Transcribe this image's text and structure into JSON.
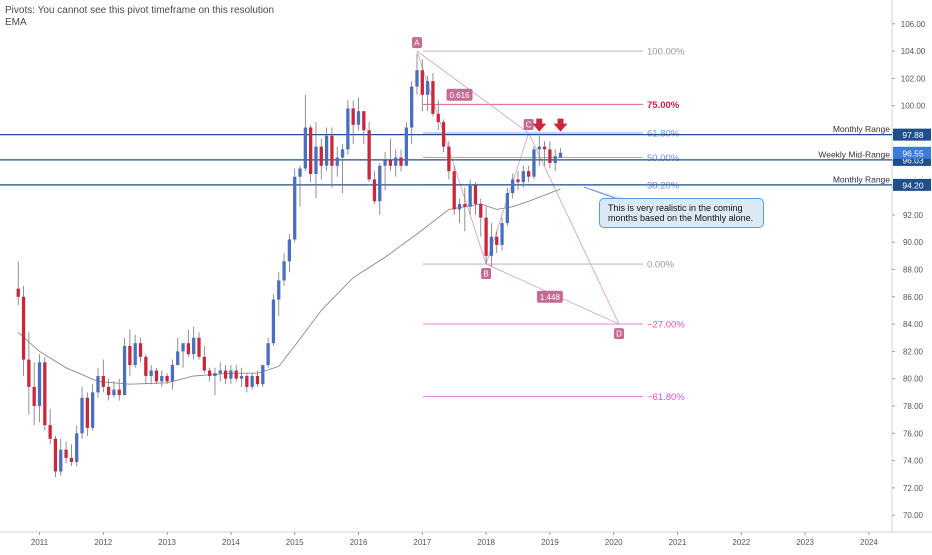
{
  "header": {
    "pivots_msg": "Pivots: You cannot see this pivot timeframe on this resolution",
    "ema_label": "EMA"
  },
  "annotation": {
    "text": "This is very realistic in the coming months based on the Monthly alone."
  },
  "colors": {
    "up": "#4a6fbf",
    "down": "#c8283c",
    "ema": "#8a8a8a",
    "range_line": "#1f4e8c",
    "fib_gray": "#9a9a9a",
    "fib_red": "#d21e44",
    "fib_blue": "#6b8fd6",
    "fib_magenta": "#e050d0",
    "point_badge": "#c46b94",
    "arrow": "#c8283c"
  },
  "chart_data": {
    "type": "candlestick",
    "title": "",
    "xlabel": "",
    "ylabel": "",
    "ylim": [
      69.0,
      107.2
    ],
    "y_ticks": [
      "70.00",
      "72.00",
      "74.00",
      "76.00",
      "78.00",
      "80.00",
      "82.00",
      "84.00",
      "86.00",
      "88.00",
      "90.00",
      "92.00",
      "94.00",
      "96.00",
      "98.00",
      "100.00",
      "102.00",
      "104.00",
      "106.00"
    ],
    "x_labels": [
      "2011",
      "2012",
      "2013",
      "2014",
      "2015",
      "2016",
      "2017",
      "2018",
      "2019",
      "2020",
      "2021",
      "2022",
      "2023",
      "2024"
    ],
    "grid": false,
    "candles": [
      {
        "t": "2010-09",
        "o": 86.6,
        "h": 88.6,
        "l": 85.4,
        "c": 86.0
      },
      {
        "t": "2010-10",
        "o": 86.0,
        "h": 86.8,
        "l": 80.2,
        "c": 81.4
      },
      {
        "t": "2010-11",
        "o": 81.4,
        "h": 83.4,
        "l": 77.4,
        "c": 79.4
      },
      {
        "t": "2010-12",
        "o": 79.4,
        "h": 81.2,
        "l": 76.6,
        "c": 78.0
      },
      {
        "t": "2011-01",
        "o": 78.0,
        "h": 81.8,
        "l": 76.8,
        "c": 81.2
      },
      {
        "t": "2011-02",
        "o": 81.2,
        "h": 81.6,
        "l": 76.2,
        "c": 76.6
      },
      {
        "t": "2011-03",
        "o": 76.6,
        "h": 77.8,
        "l": 75.2,
        "c": 75.6
      },
      {
        "t": "2011-04",
        "o": 75.6,
        "h": 75.8,
        "l": 72.8,
        "c": 73.2
      },
      {
        "t": "2011-05",
        "o": 73.2,
        "h": 75.6,
        "l": 72.9,
        "c": 74.8
      },
      {
        "t": "2011-06",
        "o": 74.8,
        "h": 75.4,
        "l": 73.8,
        "c": 74.2
      },
      {
        "t": "2011-07",
        "o": 74.2,
        "h": 75.2,
        "l": 73.6,
        "c": 73.9
      },
      {
        "t": "2011-08",
        "o": 73.9,
        "h": 76.6,
        "l": 73.6,
        "c": 76.0
      },
      {
        "t": "2011-09",
        "o": 76.0,
        "h": 79.4,
        "l": 75.6,
        "c": 78.6
      },
      {
        "t": "2011-10",
        "o": 78.6,
        "h": 79.0,
        "l": 75.8,
        "c": 76.4
      },
      {
        "t": "2011-11",
        "o": 76.4,
        "h": 79.6,
        "l": 76.2,
        "c": 79.0
      },
      {
        "t": "2011-12",
        "o": 79.0,
        "h": 80.8,
        "l": 78.6,
        "c": 80.2
      },
      {
        "t": "2012-01",
        "o": 80.2,
        "h": 81.4,
        "l": 79.0,
        "c": 79.4
      },
      {
        "t": "2012-02",
        "o": 79.4,
        "h": 80.0,
        "l": 78.4,
        "c": 78.8
      },
      {
        "t": "2012-03",
        "o": 78.8,
        "h": 79.8,
        "l": 78.6,
        "c": 79.2
      },
      {
        "t": "2012-04",
        "o": 79.2,
        "h": 80.0,
        "l": 78.4,
        "c": 78.8
      },
      {
        "t": "2012-05",
        "o": 78.8,
        "h": 83.0,
        "l": 78.8,
        "c": 82.4
      },
      {
        "t": "2012-06",
        "o": 82.4,
        "h": 83.6,
        "l": 80.2,
        "c": 81.0
      },
      {
        "t": "2012-07",
        "o": 81.0,
        "h": 83.2,
        "l": 80.8,
        "c": 82.6
      },
      {
        "t": "2012-08",
        "o": 82.6,
        "h": 83.0,
        "l": 81.2,
        "c": 81.6
      },
      {
        "t": "2012-09",
        "o": 81.6,
        "h": 81.8,
        "l": 79.6,
        "c": 80.2
      },
      {
        "t": "2012-10",
        "o": 80.2,
        "h": 81.0,
        "l": 79.6,
        "c": 80.6
      },
      {
        "t": "2012-11",
        "o": 80.6,
        "h": 80.8,
        "l": 79.6,
        "c": 79.8
      },
      {
        "t": "2012-12",
        "o": 79.8,
        "h": 80.6,
        "l": 79.4,
        "c": 80.2
      },
      {
        "t": "2013-01",
        "o": 80.2,
        "h": 80.4,
        "l": 79.6,
        "c": 79.8
      },
      {
        "t": "2013-02",
        "o": 79.8,
        "h": 81.4,
        "l": 79.2,
        "c": 81.0
      },
      {
        "t": "2013-03",
        "o": 81.0,
        "h": 83.0,
        "l": 81.0,
        "c": 82.0
      },
      {
        "t": "2013-04",
        "o": 82.0,
        "h": 82.6,
        "l": 80.8,
        "c": 82.6
      },
      {
        "t": "2013-05",
        "o": 82.6,
        "h": 83.6,
        "l": 81.6,
        "c": 81.8
      },
      {
        "t": "2013-06",
        "o": 81.8,
        "h": 83.8,
        "l": 81.4,
        "c": 83.0
      },
      {
        "t": "2013-07",
        "o": 83.0,
        "h": 83.4,
        "l": 81.4,
        "c": 81.6
      },
      {
        "t": "2013-08",
        "o": 81.6,
        "h": 82.4,
        "l": 80.4,
        "c": 80.6
      },
      {
        "t": "2013-09",
        "o": 80.6,
        "h": 80.8,
        "l": 79.8,
        "c": 80.2
      },
      {
        "t": "2013-10",
        "o": 80.2,
        "h": 80.8,
        "l": 78.8,
        "c": 80.4
      },
      {
        "t": "2013-11",
        "o": 80.4,
        "h": 81.2,
        "l": 79.8,
        "c": 80.6
      },
      {
        "t": "2013-12",
        "o": 80.6,
        "h": 81.0,
        "l": 79.6,
        "c": 80.0
      },
      {
        "t": "2014-01",
        "o": 80.0,
        "h": 81.0,
        "l": 79.6,
        "c": 80.6
      },
      {
        "t": "2014-02",
        "o": 80.6,
        "h": 81.0,
        "l": 79.8,
        "c": 80.0
      },
      {
        "t": "2014-03",
        "o": 80.0,
        "h": 80.8,
        "l": 79.4,
        "c": 80.2
      },
      {
        "t": "2014-04",
        "o": 80.2,
        "h": 80.4,
        "l": 79.0,
        "c": 79.4
      },
      {
        "t": "2014-05",
        "o": 79.4,
        "h": 80.4,
        "l": 79.2,
        "c": 80.2
      },
      {
        "t": "2014-06",
        "o": 80.2,
        "h": 80.6,
        "l": 79.4,
        "c": 79.6
      },
      {
        "t": "2014-07",
        "o": 79.6,
        "h": 81.0,
        "l": 79.4,
        "c": 81.0
      },
      {
        "t": "2014-08",
        "o": 81.0,
        "h": 83.0,
        "l": 80.8,
        "c": 82.6
      },
      {
        "t": "2014-09",
        "o": 82.6,
        "h": 86.2,
        "l": 82.4,
        "c": 85.8
      },
      {
        "t": "2014-10",
        "o": 85.8,
        "h": 87.8,
        "l": 84.6,
        "c": 87.2
      },
      {
        "t": "2014-11",
        "o": 87.2,
        "h": 89.2,
        "l": 86.8,
        "c": 88.6
      },
      {
        "t": "2014-12",
        "o": 88.6,
        "h": 90.6,
        "l": 87.8,
        "c": 90.2
      },
      {
        "t": "2015-01",
        "o": 90.2,
        "h": 95.4,
        "l": 90.0,
        "c": 94.8
      },
      {
        "t": "2015-02",
        "o": 94.8,
        "h": 95.6,
        "l": 92.6,
        "c": 95.4
      },
      {
        "t": "2015-03",
        "o": 95.4,
        "h": 100.8,
        "l": 95.2,
        "c": 98.4
      },
      {
        "t": "2015-04",
        "o": 98.4,
        "h": 98.6,
        "l": 94.4,
        "c": 95.0
      },
      {
        "t": "2015-05",
        "o": 95.0,
        "h": 98.8,
        "l": 93.2,
        "c": 97.0
      },
      {
        "t": "2015-06",
        "o": 97.0,
        "h": 97.6,
        "l": 94.6,
        "c": 95.6
      },
      {
        "t": "2015-07",
        "o": 95.6,
        "h": 98.4,
        "l": 95.2,
        "c": 97.8
      },
      {
        "t": "2015-08",
        "o": 97.8,
        "h": 98.4,
        "l": 94.0,
        "c": 95.6
      },
      {
        "t": "2015-09",
        "o": 95.6,
        "h": 97.0,
        "l": 94.8,
        "c": 96.2
      },
      {
        "t": "2015-10",
        "o": 96.2,
        "h": 97.2,
        "l": 93.6,
        "c": 96.8
      },
      {
        "t": "2015-11",
        "o": 96.8,
        "h": 100.4,
        "l": 96.4,
        "c": 99.8
      },
      {
        "t": "2015-12",
        "o": 99.8,
        "h": 100.4,
        "l": 97.2,
        "c": 98.6
      },
      {
        "t": "2016-01",
        "o": 98.6,
        "h": 100.6,
        "l": 98.2,
        "c": 99.6
      },
      {
        "t": "2016-02",
        "o": 99.6,
        "h": 99.6,
        "l": 97.2,
        "c": 98.2
      },
      {
        "t": "2016-03",
        "o": 98.2,
        "h": 98.8,
        "l": 94.4,
        "c": 94.6
      },
      {
        "t": "2016-04",
        "o": 94.6,
        "h": 95.2,
        "l": 92.8,
        "c": 93.0
      },
      {
        "t": "2016-05",
        "o": 93.0,
        "h": 95.8,
        "l": 92.0,
        "c": 95.6
      },
      {
        "t": "2016-06",
        "o": 95.6,
        "h": 96.6,
        "l": 93.8,
        "c": 96.0
      },
      {
        "t": "2016-07",
        "o": 96.0,
        "h": 97.6,
        "l": 95.2,
        "c": 95.6
      },
      {
        "t": "2016-08",
        "o": 95.6,
        "h": 96.8,
        "l": 94.8,
        "c": 96.2
      },
      {
        "t": "2016-09",
        "o": 96.2,
        "h": 96.8,
        "l": 95.2,
        "c": 95.6
      },
      {
        "t": "2016-10",
        "o": 95.6,
        "h": 98.8,
        "l": 95.6,
        "c": 98.4
      },
      {
        "t": "2016-11",
        "o": 98.4,
        "h": 101.8,
        "l": 97.2,
        "c": 101.4
      },
      {
        "t": "2016-12",
        "o": 101.4,
        "h": 103.8,
        "l": 100.8,
        "c": 102.6
      },
      {
        "t": "2017-01",
        "o": 102.6,
        "h": 103.4,
        "l": 99.6,
        "c": 100.8
      },
      {
        "t": "2017-02",
        "o": 100.8,
        "h": 102.2,
        "l": 99.6,
        "c": 101.8
      },
      {
        "t": "2017-03",
        "o": 101.8,
        "h": 102.4,
        "l": 99.2,
        "c": 99.4
      },
      {
        "t": "2017-04",
        "o": 99.4,
        "h": 100.4,
        "l": 98.2,
        "c": 98.8
      },
      {
        "t": "2017-05",
        "o": 98.8,
        "h": 99.0,
        "l": 96.6,
        "c": 97.0
      },
      {
        "t": "2017-06",
        "o": 97.0,
        "h": 97.4,
        "l": 94.6,
        "c": 95.2
      },
      {
        "t": "2017-07",
        "o": 95.2,
        "h": 95.6,
        "l": 92.0,
        "c": 92.4
      },
      {
        "t": "2017-08",
        "o": 92.4,
        "h": 93.2,
        "l": 91.4,
        "c": 92.8
      },
      {
        "t": "2017-09",
        "o": 92.8,
        "h": 94.0,
        "l": 90.8,
        "c": 92.6
      },
      {
        "t": "2017-10",
        "o": 92.6,
        "h": 94.6,
        "l": 92.0,
        "c": 94.2
      },
      {
        "t": "2017-11",
        "o": 94.2,
        "h": 94.4,
        "l": 92.0,
        "c": 92.8
      },
      {
        "t": "2017-12",
        "o": 92.8,
        "h": 93.2,
        "l": 90.4,
        "c": 91.8
      },
      {
        "t": "2018-01",
        "o": 91.8,
        "h": 92.6,
        "l": 88.4,
        "c": 89.0
      },
      {
        "t": "2018-02",
        "o": 89.0,
        "h": 91.4,
        "l": 88.2,
        "c": 90.4
      },
      {
        "t": "2018-03",
        "o": 90.4,
        "h": 90.8,
        "l": 89.2,
        "c": 89.8
      },
      {
        "t": "2018-04",
        "o": 89.8,
        "h": 91.8,
        "l": 89.4,
        "c": 91.4
      },
      {
        "t": "2018-05",
        "o": 91.4,
        "h": 94.0,
        "l": 91.2,
        "c": 93.6
      },
      {
        "t": "2018-06",
        "o": 93.6,
        "h": 95.0,
        "l": 93.2,
        "c": 94.6
      },
      {
        "t": "2018-07",
        "o": 94.6,
        "h": 95.2,
        "l": 93.8,
        "c": 94.4
      },
      {
        "t": "2018-08",
        "o": 94.4,
        "h": 95.6,
        "l": 94.0,
        "c": 95.2
      },
      {
        "t": "2018-09",
        "o": 95.2,
        "h": 95.6,
        "l": 94.4,
        "c": 94.8
      },
      {
        "t": "2018-10",
        "o": 94.8,
        "h": 97.0,
        "l": 94.6,
        "c": 96.8
      },
      {
        "t": "2018-11",
        "o": 96.8,
        "h": 97.8,
        "l": 95.6,
        "c": 97.0
      },
      {
        "t": "2018-12",
        "o": 97.0,
        "h": 97.4,
        "l": 95.6,
        "c": 96.8
      },
      {
        "t": "2019-01",
        "o": 96.8,
        "h": 97.4,
        "l": 95.4,
        "c": 95.8
      },
      {
        "t": "2019-02",
        "o": 95.8,
        "h": 96.8,
        "l": 95.2,
        "c": 96.3
      },
      {
        "t": "2019-03",
        "o": 96.2,
        "h": 96.9,
        "l": 96.2,
        "c": 96.55
      }
    ],
    "ema": {
      "name": "EMA",
      "points": [
        {
          "t": "2010-09",
          "v": 83.4
        },
        {
          "t": "2011-01",
          "v": 82.0
        },
        {
          "t": "2011-06",
          "v": 80.8
        },
        {
          "t": "2011-12",
          "v": 79.8
        },
        {
          "t": "2012-06",
          "v": 79.6
        },
        {
          "t": "2013-01",
          "v": 79.7
        },
        {
          "t": "2013-06",
          "v": 80.2
        },
        {
          "t": "2014-01",
          "v": 80.4
        },
        {
          "t": "2014-06",
          "v": 80.4
        },
        {
          "t": "2014-10",
          "v": 80.9
        },
        {
          "t": "2015-01",
          "v": 82.4
        },
        {
          "t": "2015-06",
          "v": 85.0
        },
        {
          "t": "2015-12",
          "v": 87.4
        },
        {
          "t": "2016-06",
          "v": 88.9
        },
        {
          "t": "2016-12",
          "v": 90.6
        },
        {
          "t": "2017-06",
          "v": 92.4
        },
        {
          "t": "2017-12",
          "v": 92.8
        },
        {
          "t": "2018-03",
          "v": 92.4
        },
        {
          "t": "2018-06",
          "v": 92.6
        },
        {
          "t": "2018-09",
          "v": 93.0
        },
        {
          "t": "2019-01",
          "v": 93.6
        },
        {
          "t": "2019-03",
          "v": 93.9
        }
      ]
    },
    "horizontal_levels": [
      {
        "label": "Monthly Range",
        "value": 97.88,
        "tag": "97.88"
      },
      {
        "label": "Weekly Mid-Range",
        "value": 96.03,
        "tag": "96.03"
      },
      {
        "label": "Monthly Range",
        "value": 94.2,
        "tag": "94.20"
      }
    ],
    "current_price": {
      "value": 96.55,
      "tag": "96.55"
    },
    "fib_levels": [
      {
        "label": "100.00%",
        "value": 104.0,
        "color": "gray"
      },
      {
        "label": "75.00%",
        "value": 100.1,
        "color": "red"
      },
      {
        "label": "61.80%",
        "value": 98.0,
        "color": "blue"
      },
      {
        "label": "50.00%",
        "value": 96.2,
        "color": "blue"
      },
      {
        "label": "38.20%",
        "value": 94.2,
        "color": "blue"
      },
      {
        "label": "0.00%",
        "value": 88.4,
        "color": "gray"
      },
      {
        "label": "−27.00%",
        "value": 84.0,
        "color": "magenta"
      },
      {
        "label": "−61.80%",
        "value": 78.7,
        "color": "magenta"
      }
    ],
    "pattern_points": [
      {
        "label": "A",
        "t": "2016-12",
        "v": 104.0
      },
      {
        "label": "B",
        "t": "2018-01",
        "v": 88.4
      },
      {
        "label": "C",
        "t": "2018-09",
        "v": 98.0
      },
      {
        "label": "D",
        "t": "2020-02",
        "v": 84.0
      }
    ],
    "ratios": [
      {
        "label": "0.616",
        "t": "2017-08",
        "v": 100.8
      },
      {
        "label": "1.448",
        "t": "2019-01",
        "v": 86.0
      }
    ],
    "arrows": [
      {
        "t": "2018-11",
        "v": 98.1
      },
      {
        "t": "2019-03",
        "v": 98.1
      }
    ]
  }
}
